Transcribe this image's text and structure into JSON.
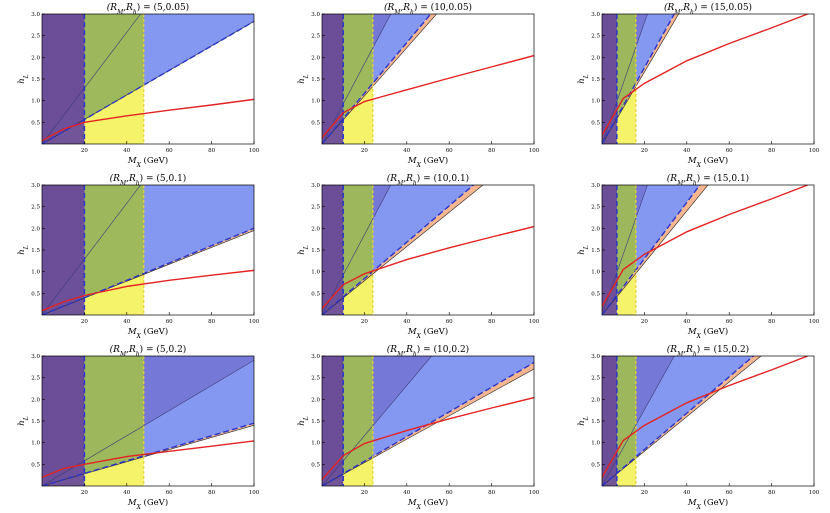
{
  "figure": {
    "description_panels": 9,
    "colors": {
      "purple": "#6a4c93",
      "green": "#9fba55",
      "yellow": "#f4f36a",
      "blue": "#6f86ef",
      "orange": "#f4a97c",
      "red": "#e52222",
      "dashed_blue": "#2a35c8",
      "dashed_yellow": "#e6d23a"
    }
  },
  "chart_data": [
    {
      "type": "area",
      "title": "(R_M,R_h) = (5,0.05)",
      "title_prefix": "(R",
      "title_sub1": "M",
      "title_mid": ",R",
      "title_sub2": "h",
      "title_suffix": ") = (5,0.05)",
      "xlabel_main": "M",
      "xlabel_sub": "X",
      "xlabel_unit": " (GeV)",
      "ylabel_main": "h",
      "ylabel_sub": "L",
      "xlim": [
        0,
        100
      ],
      "ylim": [
        0,
        3
      ],
      "xticks": [
        20,
        40,
        60,
        80,
        100
      ],
      "yticks": [
        0.5,
        1.0,
        1.5,
        2.0,
        2.5,
        3.0
      ],
      "purple_xmax": 20,
      "green_xmax": 48,
      "blue_band": {
        "upper_slope": 0.0645,
        "lower_slope": 0.0283
      },
      "orange_band": {
        "upper_slope": 0.0283,
        "lower_slope": 0.0283
      },
      "red_curve": {
        "points": [
          [
            0,
            0.08
          ],
          [
            10,
            0.34
          ],
          [
            20,
            0.5
          ],
          [
            40,
            0.65
          ],
          [
            60,
            0.78
          ],
          [
            80,
            0.9
          ],
          [
            100,
            1.03
          ]
        ]
      }
    },
    {
      "type": "area",
      "title": "(R_M,R_h) = (10,0.05)",
      "title_prefix": "(R",
      "title_sub1": "M",
      "title_mid": ",R",
      "title_sub2": "h",
      "title_suffix": ") = (10,0.05)",
      "xlabel_main": "M",
      "xlabel_sub": "X",
      "xlabel_unit": " (GeV)",
      "ylabel_main": "h",
      "ylabel_sub": "L",
      "xlim": [
        0,
        100
      ],
      "ylim": [
        0,
        3
      ],
      "xticks": [
        20,
        40,
        60,
        80,
        100
      ],
      "yticks": [
        0.5,
        1.0,
        1.5,
        2.0,
        2.5,
        3.0
      ],
      "purple_xmax": 10,
      "green_xmax": 24,
      "blue_band": {
        "upper_slope": 0.0925,
        "lower_slope": 0.0585
      },
      "orange_band": {
        "upper_slope": 0.0585,
        "lower_slope": 0.0555
      },
      "red_curve": {
        "points": [
          [
            0,
            0.15
          ],
          [
            10,
            0.72
          ],
          [
            20,
            0.98
          ],
          [
            40,
            1.25
          ],
          [
            60,
            1.52
          ],
          [
            80,
            1.78
          ],
          [
            100,
            2.04
          ]
        ]
      }
    },
    {
      "type": "area",
      "title": "(R_M,R_h) = (15,0.05)",
      "title_prefix": "(R",
      "title_sub1": "M",
      "title_mid": ",R",
      "title_sub2": "h",
      "title_suffix": ") = (15,0.05)",
      "xlabel_main": "M",
      "xlabel_sub": "X",
      "xlabel_unit": " (GeV)",
      "ylabel_main": "h",
      "ylabel_sub": "L",
      "xlim": [
        0,
        100
      ],
      "ylim": [
        0,
        3
      ],
      "xticks": [
        20,
        40,
        60,
        80,
        100
      ],
      "yticks": [
        0.5,
        1.0,
        1.5,
        2.0,
        2.5,
        3.0
      ],
      "purple_xmax": 7,
      "green_xmax": 16,
      "blue_band": {
        "upper_slope": 0.14,
        "lower_slope": 0.088
      },
      "orange_band": {
        "upper_slope": 0.088,
        "lower_slope": 0.083
      },
      "red_curve": {
        "points": [
          [
            0,
            0.2
          ],
          [
            10,
            1.05
          ],
          [
            20,
            1.4
          ],
          [
            40,
            1.92
          ],
          [
            60,
            2.32
          ],
          [
            80,
            2.68
          ],
          [
            97,
            3.0
          ]
        ]
      }
    },
    {
      "type": "area",
      "title": "(R_M,R_h) = (5,0.1)",
      "title_prefix": "(R",
      "title_sub1": "M",
      "title_mid": ",R",
      "title_sub2": "h",
      "title_suffix": ") = (5,0.1)",
      "xlabel_main": "M",
      "xlabel_sub": "X",
      "xlabel_unit": " (GeV)",
      "ylabel_main": "h",
      "ylabel_sub": "L",
      "xlim": [
        0,
        100
      ],
      "ylim": [
        0,
        3
      ],
      "xticks": [
        20,
        40,
        60,
        80,
        100
      ],
      "yticks": [
        0.5,
        1.0,
        1.5,
        2.0,
        2.5,
        3.0
      ],
      "purple_xmax": 20,
      "green_xmax": 48,
      "blue_band": {
        "upper_slope": 0.0645,
        "lower_slope": 0.02
      },
      "orange_band": {
        "upper_slope": 0.02,
        "lower_slope": 0.0195
      },
      "red_curve": {
        "points": [
          [
            0,
            0.1
          ],
          [
            10,
            0.3
          ],
          [
            20,
            0.45
          ],
          [
            40,
            0.66
          ],
          [
            60,
            0.8
          ],
          [
            80,
            0.92
          ],
          [
            100,
            1.03
          ]
        ]
      }
    },
    {
      "type": "area",
      "title": "(R_M,R_h) = (10,0.1)",
      "title_prefix": "(R",
      "title_sub1": "M",
      "title_mid": ",R",
      "title_sub2": "h",
      "title_suffix": ") = (10,0.1)",
      "xlabel_main": "M",
      "xlabel_sub": "X",
      "xlabel_unit": " (GeV)",
      "ylabel_main": "h",
      "ylabel_sub": "L",
      "xlim": [
        0,
        100
      ],
      "ylim": [
        0,
        3
      ],
      "xticks": [
        20,
        40,
        60,
        80,
        100
      ],
      "yticks": [
        0.5,
        1.0,
        1.5,
        2.0,
        2.5,
        3.0
      ],
      "purple_xmax": 10,
      "green_xmax": 24,
      "blue_band": {
        "upper_slope": 0.0925,
        "lower_slope": 0.042
      },
      "orange_band": {
        "upper_slope": 0.042,
        "lower_slope": 0.0395
      },
      "red_curve": {
        "points": [
          [
            0,
            0.15
          ],
          [
            10,
            0.7
          ],
          [
            20,
            0.95
          ],
          [
            40,
            1.28
          ],
          [
            60,
            1.55
          ],
          [
            80,
            1.8
          ],
          [
            100,
            2.04
          ]
        ]
      }
    },
    {
      "type": "area",
      "title": "(R_M,R_h) = (15,0.1)",
      "title_prefix": "(R",
      "title_sub1": "M",
      "title_mid": ",R",
      "title_sub2": "h",
      "title_suffix": ") = (15,0.1)",
      "xlabel_main": "M",
      "xlabel_sub": "X",
      "xlabel_unit": " (GeV)",
      "ylabel_main": "h",
      "ylabel_sub": "L",
      "xlim": [
        0,
        100
      ],
      "ylim": [
        0,
        3
      ],
      "xticks": [
        20,
        40,
        60,
        80,
        100
      ],
      "yticks": [
        0.5,
        1.0,
        1.5,
        2.0,
        2.5,
        3.0
      ],
      "purple_xmax": 7,
      "green_xmax": 16,
      "blue_band": {
        "upper_slope": 0.14,
        "lower_slope": 0.065
      },
      "orange_band": {
        "upper_slope": 0.065,
        "lower_slope": 0.06
      },
      "red_curve": {
        "points": [
          [
            0,
            0.2
          ],
          [
            10,
            1.05
          ],
          [
            20,
            1.4
          ],
          [
            40,
            1.92
          ],
          [
            60,
            2.32
          ],
          [
            80,
            2.68
          ],
          [
            97,
            3.0
          ]
        ]
      }
    },
    {
      "type": "area",
      "title": "(R_M,R_h) = (5,0.2)",
      "title_prefix": "(R",
      "title_sub1": "M",
      "title_mid": ",R",
      "title_sub2": "h",
      "title_suffix": ") = (5,0.2)",
      "xlabel_main": "M",
      "xlabel_sub": "X",
      "xlabel_unit": " (GeV)",
      "ylabel_main": "h",
      "ylabel_sub": "L",
      "xlim": [
        0,
        100
      ],
      "ylim": [
        0,
        3
      ],
      "xticks": [
        20,
        40,
        60,
        80,
        100
      ],
      "yticks": [
        0.5,
        1.0,
        1.5,
        2.0,
        2.5,
        3.0
      ],
      "purple_xmax": 20,
      "green_xmax": 48,
      "blue_band": {
        "upper_slope": 0.029,
        "lower_slope": 0.0145
      },
      "orange_band": {
        "upper_slope": 0.0145,
        "lower_slope": 0.014
      },
      "red_curve": {
        "points": [
          [
            0,
            0.2
          ],
          [
            10,
            0.4
          ],
          [
            20,
            0.5
          ],
          [
            40,
            0.68
          ],
          [
            60,
            0.8
          ],
          [
            80,
            0.92
          ],
          [
            100,
            1.04
          ]
        ]
      }
    },
    {
      "type": "area",
      "title": "(R_M,R_h) = (10,0.2)",
      "title_prefix": "(R",
      "title_sub1": "M",
      "title_mid": ",R",
      "title_sub2": "h",
      "title_suffix": ") = (10,0.2)",
      "xlabel_main": "M",
      "xlabel_sub": "X",
      "xlabel_unit": " (GeV)",
      "ylabel_main": "h",
      "ylabel_sub": "L",
      "xlim": [
        0,
        100
      ],
      "ylim": [
        0,
        3
      ],
      "xticks": [
        20,
        40,
        60,
        80,
        100
      ],
      "yticks": [
        0.5,
        1.0,
        1.5,
        2.0,
        2.5,
        3.0
      ],
      "purple_xmax": 10,
      "green_xmax": 24,
      "blue_band": {
        "upper_slope": 0.058,
        "lower_slope": 0.0285
      },
      "orange_band": {
        "upper_slope": 0.0285,
        "lower_slope": 0.027
      },
      "red_curve": {
        "points": [
          [
            0,
            0.15
          ],
          [
            10,
            0.7
          ],
          [
            20,
            0.98
          ],
          [
            40,
            1.28
          ],
          [
            60,
            1.55
          ],
          [
            80,
            1.8
          ],
          [
            100,
            2.04
          ]
        ]
      }
    },
    {
      "type": "area",
      "title": "(R_M,R_h) = (15,0.2)",
      "title_prefix": "(R",
      "title_sub1": "M",
      "title_mid": ",R",
      "title_sub2": "h",
      "title_suffix": ") = (15,0.2)",
      "xlabel_main": "M",
      "xlabel_sub": "X",
      "xlabel_unit": " (GeV)",
      "ylabel_main": "h",
      "ylabel_sub": "L",
      "xlim": [
        0,
        100
      ],
      "ylim": [
        0,
        3
      ],
      "xticks": [
        20,
        40,
        60,
        80,
        100
      ],
      "yticks": [
        0.5,
        1.0,
        1.5,
        2.0,
        2.5,
        3.0
      ],
      "purple_xmax": 7,
      "green_xmax": 16,
      "blue_band": {
        "upper_slope": 0.088,
        "lower_slope": 0.042
      },
      "orange_band": {
        "upper_slope": 0.042,
        "lower_slope": 0.04
      },
      "red_curve": {
        "points": [
          [
            0,
            0.2
          ],
          [
            10,
            1.05
          ],
          [
            20,
            1.4
          ],
          [
            40,
            1.92
          ],
          [
            60,
            2.32
          ],
          [
            80,
            2.68
          ],
          [
            97,
            3.0
          ]
        ]
      }
    }
  ]
}
